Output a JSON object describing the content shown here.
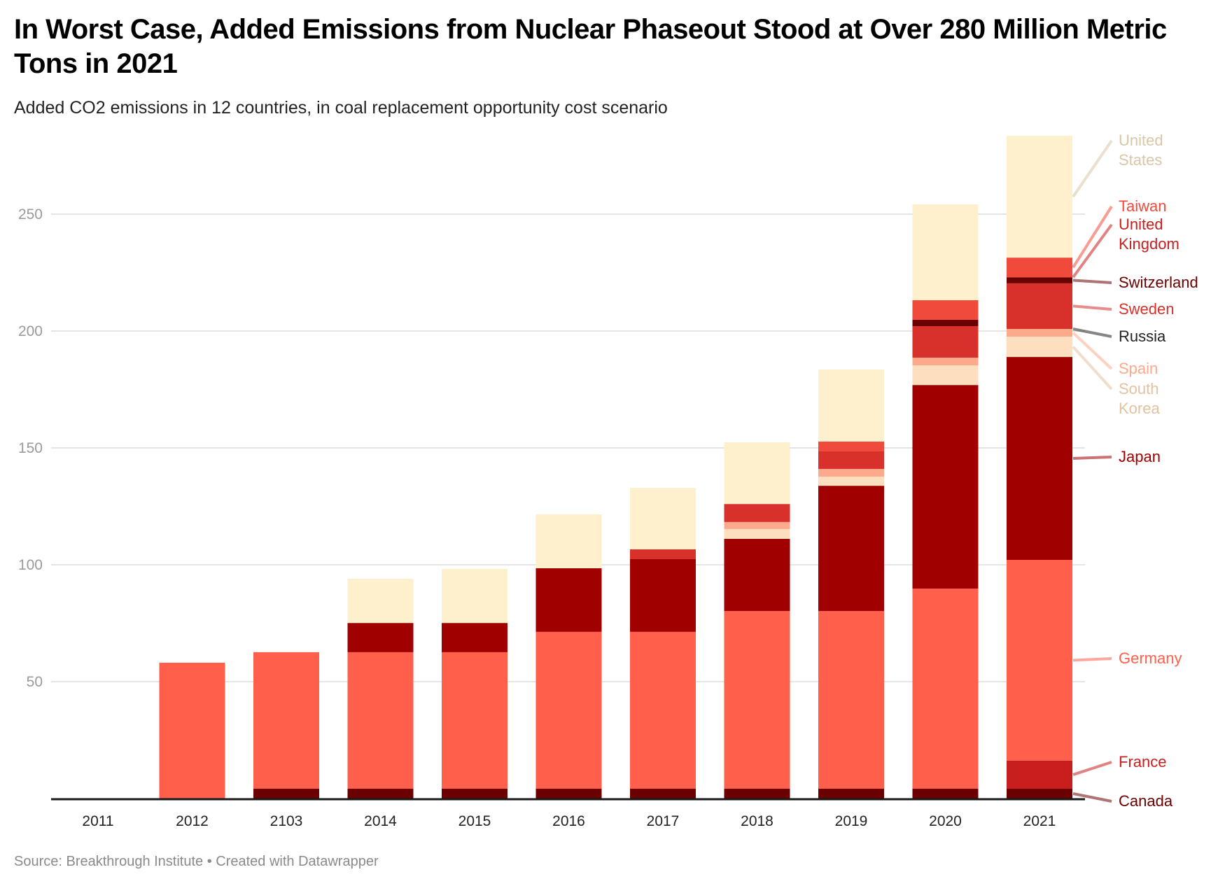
{
  "header": {
    "title": "In Worst Case, Added Emissions from Nuclear Phaseout Stood at Over 280 Million Metric Tons in 2021",
    "subtitle": "Added CO2 emissions in 12 countries, in coal replacement opportunity cost scenario"
  },
  "footer": {
    "source": "Source: Breakthrough Institute • Created with Datawrapper"
  },
  "chart_data": {
    "type": "bar",
    "stacked": true,
    "title": "In Worst Case, Added Emissions from Nuclear Phaseout Stood at Over 280 Million Metric Tons in 2021",
    "subtitle": "Added CO2 emissions in 12 countries, in coal replacement opportunity cost scenario",
    "xlabel": "",
    "ylabel": "",
    "ylim": [
      0,
      285
    ],
    "yticks": [
      50,
      100,
      150,
      200,
      250
    ],
    "grid": true,
    "legend": "right (direct labels)",
    "categories": [
      "2011",
      "2012",
      "2103",
      "2014",
      "2015",
      "2016",
      "2017",
      "2018",
      "2019",
      "2020",
      "2021"
    ],
    "series": [
      {
        "name": "Canada",
        "color": "#6b0000",
        "label_color": "#6b0000",
        "values": [
          0,
          0,
          4.2,
          4.2,
          4.2,
          4.2,
          4.2,
          4.2,
          4.2,
          4.2,
          4.2
        ]
      },
      {
        "name": "France",
        "color": "#c81e1e",
        "label_color": "#c81e1e",
        "values": [
          0,
          0,
          0,
          0,
          0,
          0,
          0,
          0,
          0,
          0,
          12.0
        ]
      },
      {
        "name": "Germany",
        "color": "#ff5f4b",
        "label_color": "#ff5f4b",
        "values": [
          0,
          58.1,
          58.4,
          58.4,
          58.4,
          67.1,
          67.1,
          76.0,
          76.0,
          85.6,
          85.9
        ]
      },
      {
        "name": "Japan",
        "color": "#a00000",
        "label_color": "#a00000",
        "values": [
          0,
          0,
          0,
          12.5,
          12.5,
          27.2,
          31.1,
          30.9,
          53.6,
          87.1,
          86.8
        ]
      },
      {
        "name": "South Korea",
        "color": "#fddfc0",
        "label_color": "#e3c2a0",
        "values": [
          0,
          0,
          0,
          0,
          0,
          0,
          0,
          4.2,
          3.9,
          8.4,
          8.7
        ]
      },
      {
        "name": "Spain",
        "color": "#fca98c",
        "label_color": "#fca98c",
        "values": [
          0,
          0,
          0,
          0,
          0,
          0,
          0,
          3.0,
          3.3,
          3.3,
          3.3
        ]
      },
      {
        "name": "Russia",
        "color": "#555555",
        "label_color": "#222222",
        "values": [
          0,
          0,
          0,
          0,
          0,
          0,
          0,
          0,
          0,
          0,
          0
        ]
      },
      {
        "name": "Sweden",
        "color": "#d8302a",
        "label_color": "#d8302a",
        "values": [
          0,
          0,
          0,
          0,
          0,
          0,
          4.2,
          7.7,
          7.5,
          13.5,
          19.5
        ]
      },
      {
        "name": "Switzerland",
        "color": "#6b0000",
        "label_color": "#6b0000",
        "values": [
          0,
          0,
          0,
          0,
          0,
          0,
          0,
          0,
          0,
          2.7,
          2.6
        ]
      },
      {
        "name": "United Kingdom",
        "color": "#c81e1e",
        "label_color": "#c81e1e",
        "values": [
          0,
          0,
          0,
          0,
          0,
          0,
          0,
          0,
          0,
          0,
          0
        ]
      },
      {
        "name": "Taiwan",
        "color": "#ef4a3c",
        "label_color": "#ef4a3c",
        "values": [
          0,
          0,
          0,
          0,
          0,
          0,
          0,
          0,
          4.2,
          8.4,
          8.4
        ]
      },
      {
        "name": "United States",
        "color": "#feefcd",
        "label_color": "#d8c7a6",
        "values": [
          0,
          0,
          0,
          18.9,
          23.1,
          23.1,
          26.3,
          26.4,
          30.8,
          41.0,
          52.1
        ]
      }
    ],
    "labels": [
      {
        "series": "United States",
        "lines": [
          "United",
          "States"
        ]
      },
      {
        "series": "Taiwan",
        "lines": [
          "Taiwan"
        ]
      },
      {
        "series": "United Kingdom",
        "lines": [
          "United",
          "Kingdom"
        ]
      },
      {
        "series": "Switzerland",
        "lines": [
          "Switzerland"
        ]
      },
      {
        "series": "Sweden",
        "lines": [
          "Sweden"
        ]
      },
      {
        "series": "Russia",
        "lines": [
          "Russia"
        ]
      },
      {
        "series": "Spain",
        "lines": [
          "Spain"
        ]
      },
      {
        "series": "South Korea",
        "lines": [
          "South",
          "Korea"
        ]
      },
      {
        "series": "Japan",
        "lines": [
          "Japan"
        ]
      },
      {
        "series": "Germany",
        "lines": [
          "Germany"
        ]
      },
      {
        "series": "France",
        "lines": [
          "France"
        ]
      },
      {
        "series": "Canada",
        "lines": [
          "Canada"
        ]
      }
    ]
  }
}
